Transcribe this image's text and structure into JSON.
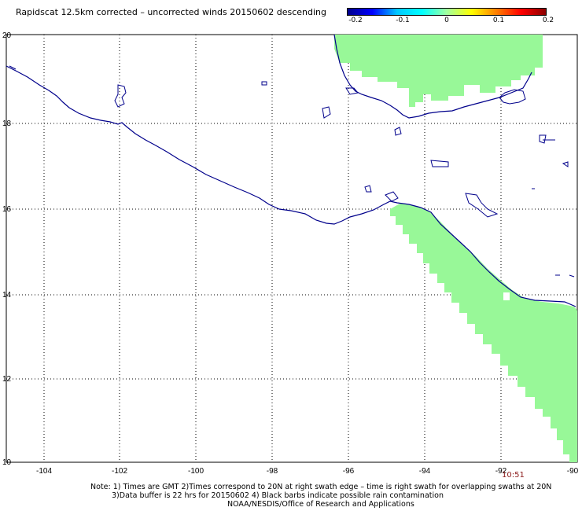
{
  "title": "Rapidscat 12.5km corrected – uncorrected winds 20150602 descending",
  "colorbar": {
    "labels": [
      "-0.2",
      "-0.1",
      "0",
      "0.1",
      "0.2"
    ],
    "values": [
      -0.2,
      -0.1,
      0,
      0.1,
      0.2
    ],
    "colors": [
      "#00008b",
      "#0000ff",
      "#00c8ff",
      "#00ffff",
      "#a0ffa0",
      "#ffff00",
      "#ff8000",
      "#ff0000",
      "#8b0000"
    ]
  },
  "axes": {
    "x_ticks": [
      "-104",
      "-102",
      "-100",
      "-98",
      "-96",
      "-94",
      "-92",
      "-90"
    ],
    "y_ticks": [
      "20",
      "18",
      "16",
      "14",
      "12",
      "10"
    ],
    "lon_range": [
      -105,
      -90
    ],
    "lat_range": [
      10,
      20
    ]
  },
  "swath_color": "#98f898",
  "coast_color": "#00008b",
  "time_label": "10:51",
  "notes": {
    "line1": "Note: 1) Times are GMT 2)Times correspond to 20N at right swath edge – time is right swath for overlapping swaths at 20N",
    "line2": "3)Data buffer is 22 hrs for 20150602 4) Black barbs indicate possible rain contamination",
    "line3": "NOAA/NESDIS/Office of Research and Applications"
  }
}
